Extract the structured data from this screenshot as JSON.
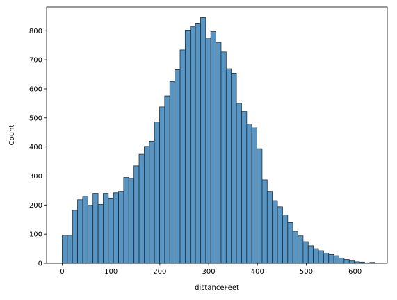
{
  "chart_data": {
    "type": "bar",
    "title": "",
    "xlabel": "distanceFeet",
    "ylabel": "Count",
    "xlim": [
      -32,
      666
    ],
    "ylim": [
      0,
      882
    ],
    "xticks": [
      0,
      100,
      200,
      300,
      400,
      500,
      600
    ],
    "yticks": [
      0,
      100,
      200,
      300,
      400,
      500,
      600,
      700,
      800
    ],
    "grid": false,
    "bar_color": "#4f8fbf",
    "bin_width": 10.5,
    "bins_start": 0,
    "values": [
      96,
      96,
      182,
      218,
      230,
      199,
      240,
      202,
      240,
      224,
      242,
      247,
      295,
      292,
      335,
      375,
      402,
      420,
      486,
      538,
      576,
      625,
      666,
      734,
      802,
      815,
      826,
      845,
      775,
      797,
      760,
      727,
      669,
      654,
      550,
      522,
      479,
      466,
      394,
      287,
      247,
      215,
      194,
      166,
      140,
      110,
      94,
      74,
      60,
      50,
      43,
      35,
      30,
      26,
      18,
      13,
      8,
      5,
      4,
      1,
      3
    ]
  }
}
